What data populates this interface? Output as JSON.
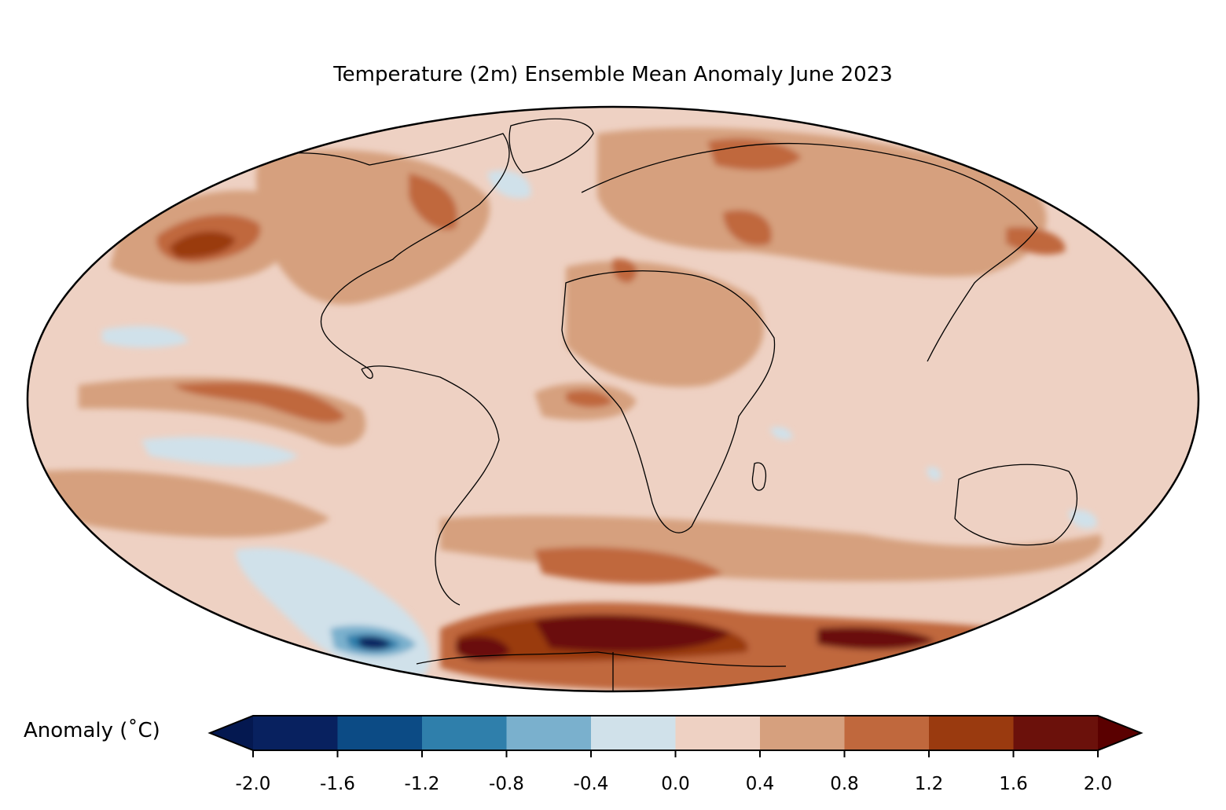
{
  "title": "Temperature (2m) Ensemble Mean Anomaly June 2023",
  "colorbar": {
    "label": "Anomaly (˚C)",
    "ticks": [
      "-2.0",
      "-1.6",
      "-1.2",
      "-0.8",
      "-0.4",
      "0.0",
      "0.4",
      "0.8",
      "1.2",
      "1.6",
      "2.0"
    ],
    "bins": [
      {
        "from": -2.0,
        "to": -1.6,
        "color": "#08215f"
      },
      {
        "from": -1.6,
        "to": -1.2,
        "color": "#0c4b85"
      },
      {
        "from": -1.2,
        "to": -0.8,
        "color": "#2f7fab"
      },
      {
        "from": -0.8,
        "to": -0.4,
        "color": "#7ab0cd"
      },
      {
        "from": -0.4,
        "to": 0.0,
        "color": "#d0e1ea"
      },
      {
        "from": 0.0,
        "to": 0.4,
        "color": "#eed1c3"
      },
      {
        "from": 0.4,
        "to": 0.8,
        "color": "#d6a07e"
      },
      {
        "from": 0.8,
        "to": 1.2,
        "color": "#c0683d"
      },
      {
        "from": 1.2,
        "to": 1.6,
        "color": "#9a3a0f"
      },
      {
        "from": 1.6,
        "to": 2.0,
        "color": "#6b110b"
      }
    ],
    "under_color": "#041850",
    "over_color": "#5a0000"
  },
  "map": {
    "projection": "Mollweide",
    "background_color": "#eed1c3"
  }
}
